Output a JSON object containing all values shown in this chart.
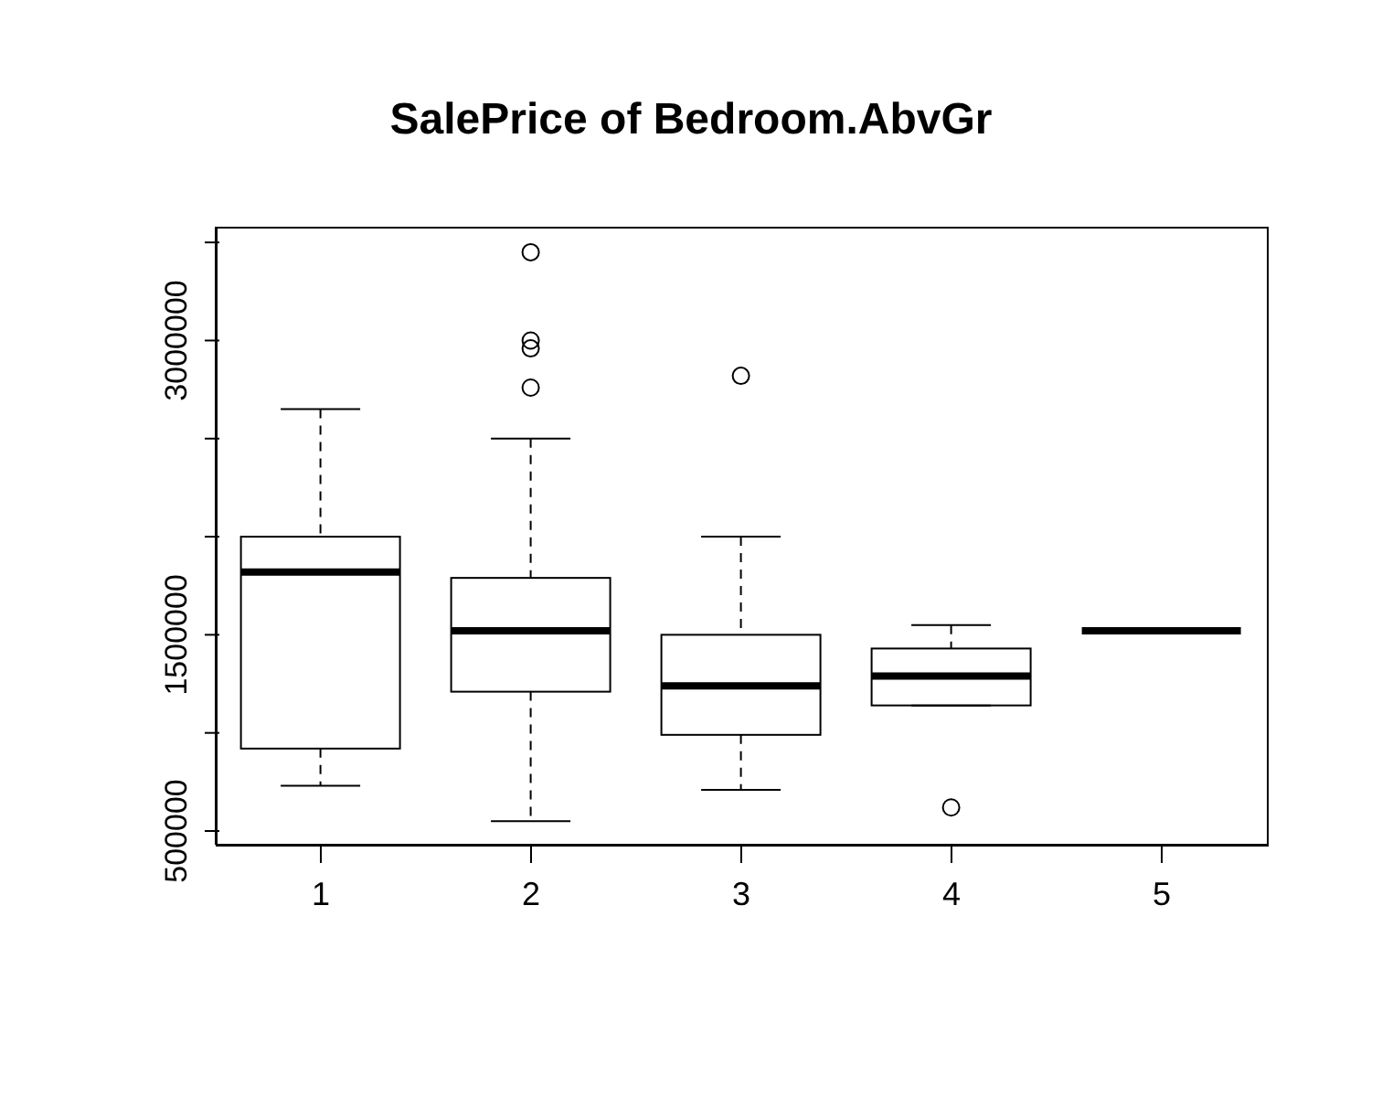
{
  "chart_data": {
    "type": "box",
    "title": "SalePrice of Bedroom.AbvGr",
    "categories": [
      "1",
      "2",
      "3",
      "4",
      "5"
    ],
    "color": "#000000",
    "boxes": [
      {
        "low": 730000,
        "q1": 920000,
        "median": 1820000,
        "q3": 2000000,
        "high": 2650000
      },
      {
        "low": 550000,
        "q1": 1210000,
        "median": 1520000,
        "q3": 1790000,
        "high": 2500000,
        "outliers": [
          2760000,
          2960000,
          3000000,
          3450000
        ]
      },
      {
        "low": 710000,
        "q1": 990000,
        "median": 1240000,
        "q3": 1500000,
        "high": 2000000,
        "outliers": [
          2820000
        ]
      },
      {
        "low": 1140000,
        "q1": 1140000,
        "median": 1290000,
        "q3": 1430000,
        "high": 1550000,
        "outliers": [
          620000
        ]
      },
      {
        "low": 1520000,
        "q1": 1520000,
        "median": 1520000,
        "q3": 1520000,
        "high": 1520000
      }
    ],
    "ylim": [
      430000,
      3580000
    ],
    "yticks": [
      500000,
      {
        "value": 1000000,
        "label": null
      },
      1500000,
      {
        "value": 2000000,
        "label": null
      },
      {
        "value": 2500000,
        "label": null
      },
      3000000,
      {
        "value": 3500000,
        "label": null
      }
    ]
  }
}
